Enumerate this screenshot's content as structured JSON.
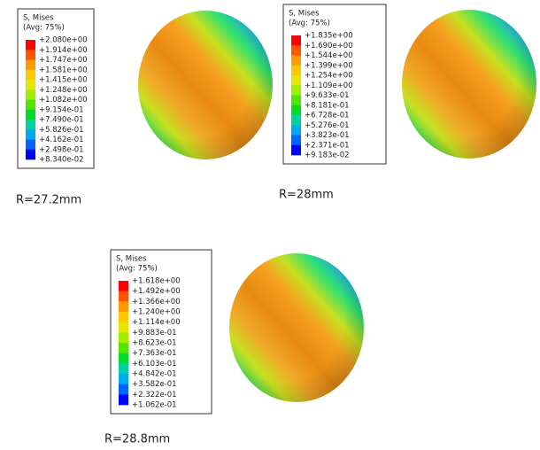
{
  "panels": [
    {
      "legend_title": "S, Mises",
      "legend_subtitle": "(Avg: 75%)",
      "labels": [
        "+2.080e+00",
        "+1.914e+00",
        "+1.747e+00",
        "+1.581e+00",
        "+1.415e+00",
        "+1.248e+00",
        "+1.082e+00",
        "+9.154e-01",
        "+7.490e-01",
        "+5.826e-01",
        "+4.162e-01",
        "+2.498e-01",
        "+8.340e-02"
      ],
      "caption": "R=27.2mm"
    },
    {
      "legend_title": "S, Mises",
      "legend_subtitle": "(Avg: 75%)",
      "labels": [
        "+1.835e+00",
        "+1.690e+00",
        "+1.544e+00",
        "+1.399e+00",
        "+1.254e+00",
        "+1.109e+00",
        "+9.633e-01",
        "+8.181e-01",
        "+6.728e-01",
        "+5.276e-01",
        "+3.823e-01",
        "+2.371e-01",
        "+9.183e-02"
      ],
      "caption": "R=28mm"
    },
    {
      "legend_title": "S, Mises",
      "legend_subtitle": "(Avg: 75%)",
      "labels": [
        "+1.618e+00",
        "+1.492e+00",
        "+1.366e+00",
        "+1.240e+00",
        "+1.114e+00",
        "+9.883e-01",
        "+8.623e-01",
        "+7.363e-01",
        "+6.103e-01",
        "+4.842e-01",
        "+3.582e-01",
        "+2.322e-01",
        "+1.062e-01"
      ],
      "caption": "R=28.8mm"
    }
  ]
}
